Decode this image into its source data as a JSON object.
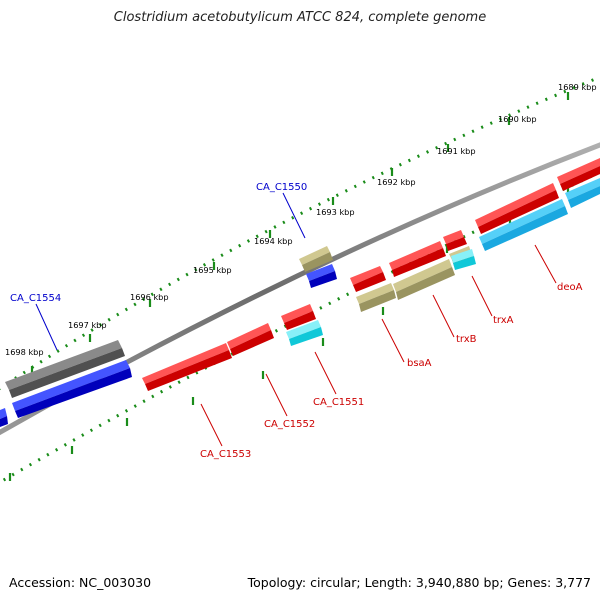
{
  "title": "Clostridium acetobutylicum ATCC 824, complete genome",
  "footer": {
    "accession": "Accession: NC_003030",
    "summary": "Topology: circular; Length: 3,940,880 bp; Genes: 3,777"
  },
  "ruler_labels": [
    "1689 kbp",
    "1690 kbp",
    "1691 kbp",
    "1692 kbp",
    "1693 kbp",
    "1694 kbp",
    "1695 kbp",
    "1696 kbp",
    "1697 kbp",
    "1698 kbp"
  ],
  "gene_labels": {
    "CA_C1550": "CA_C1550",
    "CA_C1554": "CA_C1554",
    "CA_C1551": "CA_C1551",
    "CA_C1552": "CA_C1552",
    "CA_C1553": "CA_C1553",
    "bsaA": "bsaA",
    "trxB": "trxB",
    "trxA": "trxA",
    "deoA": "deoA"
  },
  "colors": {
    "backbone": "#7a7a7a",
    "ruler_ticks": "#1a8c1a",
    "gene_red": "#ee1111",
    "gene_blue": "#1111dd",
    "gene_cyan": "#22ddee",
    "gene_light_blue": "#22bbee",
    "gene_khaki": "#b8b078",
    "gene_gray": "#555555",
    "label_red": "#cc0000",
    "label_blue": "#0000cc"
  }
}
